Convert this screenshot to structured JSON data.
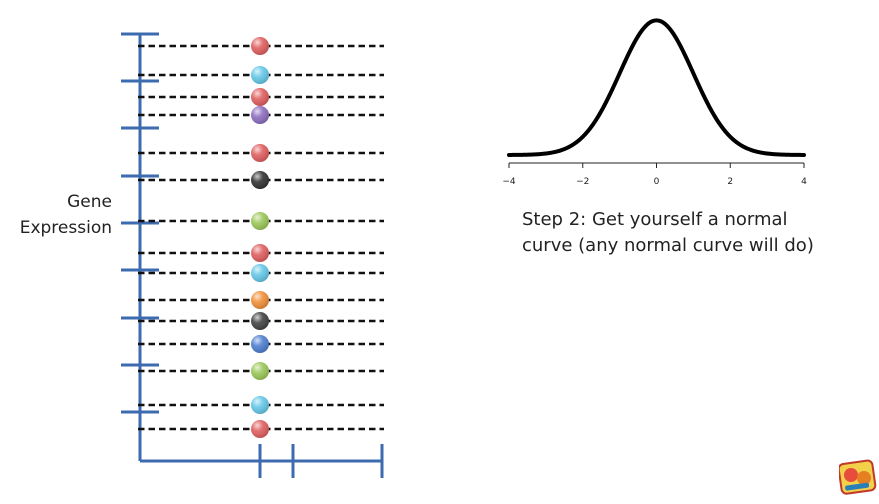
{
  "slide": {
    "y_axis_label_line1": "Gene",
    "y_axis_label_line2": "Expression",
    "caption_line1": "Step 2: Get yourself a normal",
    "caption_line2": "curve (any normal curve will do)"
  },
  "colors": {
    "axis_blue": "#3d6bb0",
    "dashed_line": "#111111",
    "curve": "#000000"
  },
  "chart_data": {
    "type": "line",
    "x_ticks": [
      "−4",
      "−2",
      "0",
      "2",
      "4"
    ],
    "x_tick_values": [
      -4,
      -2,
      0,
      2,
      4
    ],
    "xlim": [
      -4,
      4
    ],
    "ylim": [
      0,
      0.4
    ],
    "curve": "standard normal density",
    "series": [
      {
        "values_function": "normal_pdf",
        "mean": 0,
        "sd": 1
      }
    ]
  },
  "samples": [
    {
      "color": "#e06060"
    },
    {
      "color": "#66c8e8"
    },
    {
      "color": "#e06060"
    },
    {
      "color": "#8d6ec0"
    },
    {
      "color": "#e06060"
    },
    {
      "color": "#333333"
    },
    {
      "color": "#9cc85a"
    },
    {
      "color": "#e06060"
    },
    {
      "color": "#66c8e8"
    },
    {
      "color": "#f0903a"
    },
    {
      "color": "#444444"
    },
    {
      "color": "#4f7fd0"
    },
    {
      "color": "#9cc85a"
    },
    {
      "color": "#66c8e8"
    },
    {
      "color": "#e06060"
    }
  ]
}
